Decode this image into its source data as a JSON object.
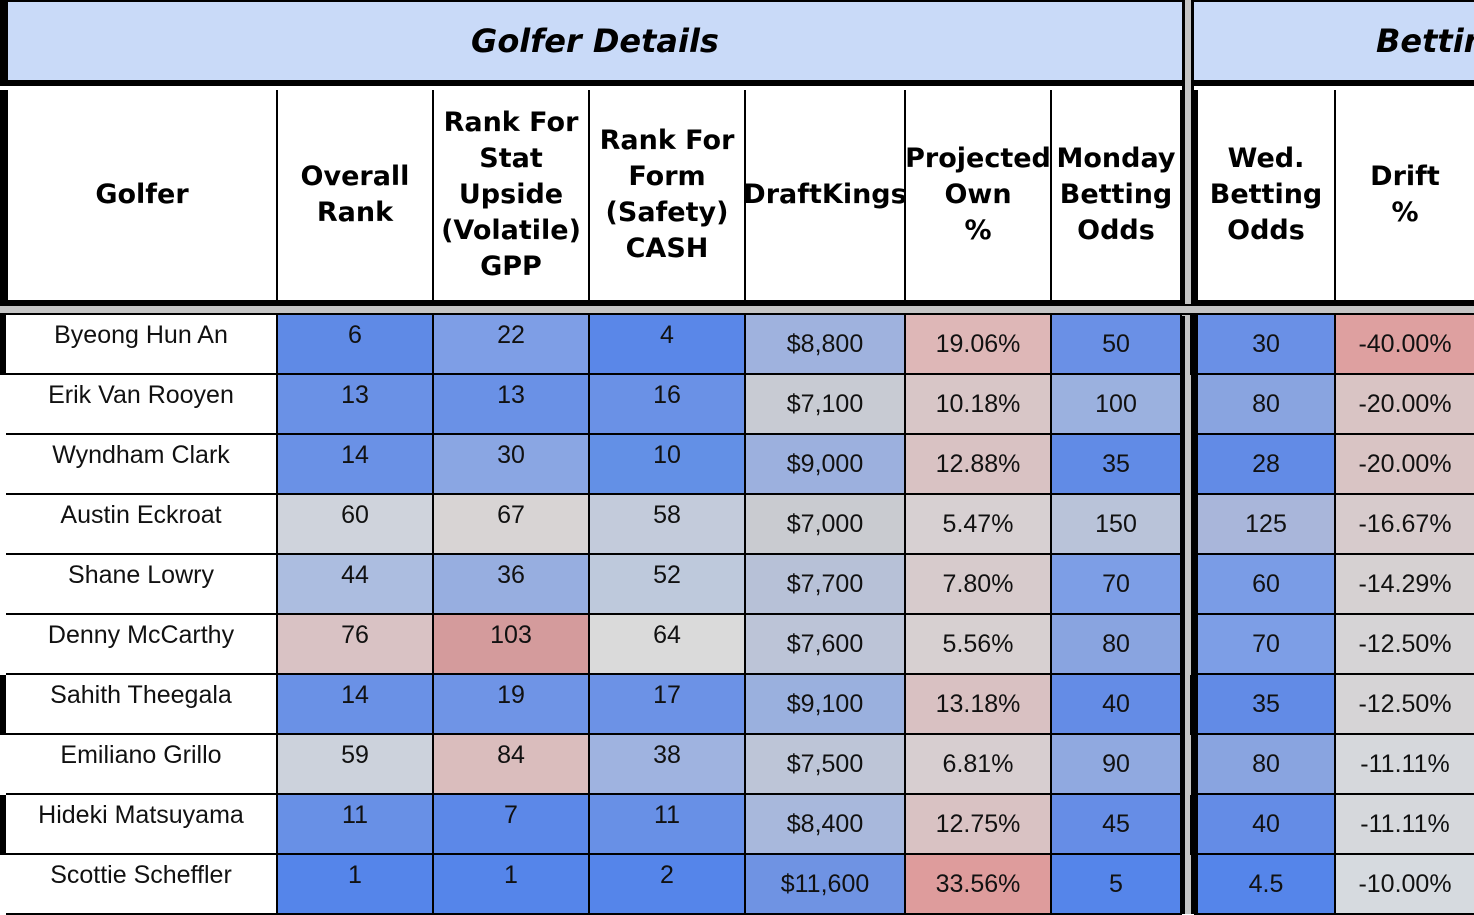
{
  "sections": {
    "golfer_details": "Golfer Details",
    "betting": "Betting"
  },
  "headers": {
    "golfer": "Golfer",
    "overall_rank": "Overall\nRank",
    "rank_stat": "Rank For\nStat\nUpside\n(Volatile)\nGPP",
    "rank_form": "Rank For\nForm\n(Safety)\nCASH",
    "draftkings": "DraftKings",
    "projected_own": "Projected\nOwn\n%",
    "monday_odds": "Monday\nBetting\nOdds",
    "wed_odds": "Wed.\nBetting\nOdds",
    "drift": "Drift\n%"
  },
  "rows": [
    {
      "golfer": "Byeong Hun An",
      "overall": "6",
      "stat": "22",
      "form": "4",
      "dk": "$8,800",
      "own": "19.06%",
      "monday": "50",
      "wed": "30",
      "drift": "-40.00%",
      "colors": {
        "overall": "#5f8ae6",
        "stat": "#7e9ee6",
        "form": "#5a87e8",
        "dk": "#9fb2de",
        "own": "#deb7b7",
        "monday": "#6a90e6",
        "wed": "#6a90e6",
        "drift": "#dea0a0"
      }
    },
    {
      "golfer": "Erik Van Rooyen",
      "overall": "13",
      "stat": "13",
      "form": "16",
      "dk": "$7,100",
      "own": "10.18%",
      "monday": "100",
      "wed": "80",
      "drift": "-20.00%",
      "colors": {
        "overall": "#6a91e6",
        "stat": "#6a91e6",
        "form": "#6a91e6",
        "dk": "#c8cbd3",
        "own": "#d8c6c7",
        "monday": "#9bb1df",
        "wed": "#89a4e0",
        "drift": "#d9c4c4"
      }
    },
    {
      "golfer": "Wyndham Clark",
      "overall": "14",
      "stat": "30",
      "form": "10",
      "dk": "$9,000",
      "own": "12.88%",
      "monday": "35",
      "wed": "28",
      "drift": "-20.00%",
      "colors": {
        "overall": "#6a91e6",
        "stat": "#8aa6e3",
        "form": "#6390e6",
        "dk": "#9cb0de",
        "own": "#d9c2c3",
        "monday": "#618be6",
        "wed": "#628be6",
        "drift": "#d9c4c4"
      }
    },
    {
      "golfer": "Austin Eckroat",
      "overall": "60",
      "stat": "67",
      "form": "58",
      "dk": "$7,000",
      "own": "5.47%",
      "monday": "150",
      "wed": "125",
      "drift": "-16.67%",
      "colors": {
        "overall": "#cfd3dc",
        "stat": "#d8d4d4",
        "form": "#c3cbdb",
        "dk": "#c9cbd0",
        "own": "#d7d0d2",
        "monday": "#b9c3d9",
        "wed": "#a9b6da",
        "drift": "#d7cbcc"
      }
    },
    {
      "golfer": "Shane Lowry",
      "overall": "44",
      "stat": "36",
      "form": "52",
      "dk": "$7,700",
      "own": "7.80%",
      "monday": "70",
      "wed": "60",
      "drift": "-14.29%",
      "colors": {
        "overall": "#acbde0",
        "stat": "#97aee0",
        "form": "#bec9dc",
        "dk": "#b7c1d7",
        "own": "#d7cbcc",
        "monday": "#7d9ee6",
        "wed": "#7a9ce6",
        "drift": "#d6d1d2"
      }
    },
    {
      "golfer": "Denny McCarthy",
      "overall": "76",
      "stat": "103",
      "form": "64",
      "dk": "$7,600",
      "own": "5.56%",
      "monday": "80",
      "wed": "70",
      "drift": "-12.50%",
      "colors": {
        "overall": "#d9c2c4",
        "stat": "#d49b9c",
        "form": "#dadada",
        "dk": "#bcc4d7",
        "own": "#d7d0d1",
        "monday": "#89a4e0",
        "wed": "#7d9ee6",
        "drift": "#d6d4d6"
      }
    },
    {
      "golfer": "Sahith Theegala",
      "overall": "14",
      "stat": "19",
      "form": "17",
      "dk": "$9,100",
      "own": "13.18%",
      "monday": "40",
      "wed": "35",
      "drift": "-12.50%",
      "colors": {
        "overall": "#6a91e6",
        "stat": "#6f94e6",
        "form": "#6c92e6",
        "dk": "#9ab0de",
        "own": "#d9c1c2",
        "monday": "#648ce6",
        "wed": "#628be6",
        "drift": "#d6d4d6"
      }
    },
    {
      "golfer": "Emiliano Grillo",
      "overall": "59",
      "stat": "84",
      "form": "38",
      "dk": "$7,500",
      "own": "6.81%",
      "monday": "90",
      "wed": "80",
      "drift": "-11.11%",
      "colors": {
        "overall": "#ccd2dc",
        "stat": "#dabdbd",
        "form": "#9fb3e0",
        "dk": "#bdc5d7",
        "own": "#d7ced0",
        "monday": "#90a9e0",
        "wed": "#89a4e0",
        "drift": "#d6d8dc"
      }
    },
    {
      "golfer": "Hideki Matsuyama",
      "overall": "11",
      "stat": "7",
      "form": "11",
      "dk": "$8,400",
      "own": "12.75%",
      "monday": "45",
      "wed": "40",
      "drift": "-11.11%",
      "colors": {
        "overall": "#6890e6",
        "stat": "#5c88e8",
        "form": "#6890e6",
        "dk": "#a8b8dc",
        "own": "#d9c2c3",
        "monday": "#668de6",
        "wed": "#648ce6",
        "drift": "#d6d8dc"
      }
    },
    {
      "golfer": "Scottie Scheffler",
      "overall": "1",
      "stat": "1",
      "form": "2",
      "dk": "$11,600",
      "own": "33.56%",
      "monday": "5",
      "wed": "4.5",
      "drift": "-10.00%",
      "colors": {
        "overall": "#5585ea",
        "stat": "#5585ea",
        "form": "#5585ea",
        "dk": "#6f93e3",
        "own": "#de9c9c",
        "monday": "#5585ea",
        "wed": "#5585ea",
        "drift": "#d6dadf"
      }
    }
  ]
}
